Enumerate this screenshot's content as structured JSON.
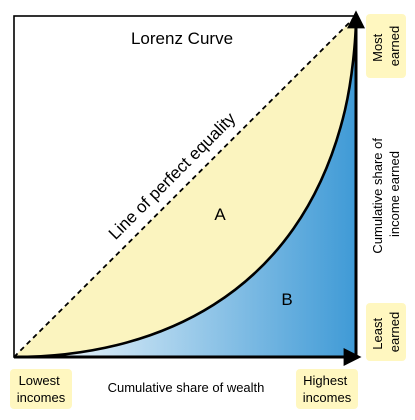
{
  "title": "Lorenz Curve",
  "equality_line_label": "Line of perfect equality",
  "area_a_label": "A",
  "area_b_label": "B",
  "x_axis": {
    "label": "Cumulative share of wealth",
    "start_label": [
      "Lowest",
      "incomes"
    ],
    "end_label": [
      "Highest",
      "incomes"
    ]
  },
  "y_axis": {
    "label": [
      "Cumulative share of",
      "income earned"
    ],
    "top_label": [
      "Most",
      "earned"
    ],
    "bottom_label": [
      "Least",
      "earned"
    ]
  },
  "colors": {
    "area_a": "#fbf4bf",
    "area_b_dark": "#3f9ad6",
    "area_b_light": "#ffffff",
    "label_box": "#fff7c0"
  }
}
